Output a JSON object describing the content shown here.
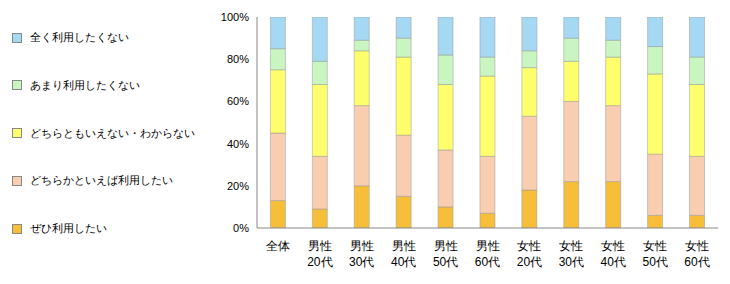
{
  "chart_data": {
    "type": "bar",
    "stacked": true,
    "categories": [
      "全体",
      "男性\n20代",
      "男性\n30代",
      "男性\n40代",
      "男性\n50代",
      "男性\n60代",
      "女性\n20代",
      "女性\n30代",
      "女性\n40代",
      "女性\n50代",
      "女性\n60代"
    ],
    "series": [
      {
        "name": "ぜひ利用したい",
        "color": "#F7BE3A",
        "values": [
          13,
          9,
          20,
          15,
          10,
          7,
          18,
          22,
          22,
          6,
          6
        ]
      },
      {
        "name": "どちらかといえば利用したい",
        "color": "#F9CDB0",
        "values": [
          32,
          25,
          38,
          29,
          27,
          27,
          35,
          38,
          36,
          29,
          28
        ]
      },
      {
        "name": "どちらともいえない・わからない",
        "color": "#FFFF6E",
        "values": [
          30,
          34,
          26,
          37,
          31,
          38,
          23,
          19,
          23,
          38,
          34
        ]
      },
      {
        "name": "あまり利用したくない",
        "color": "#C8F5C0",
        "values": [
          10,
          11,
          5,
          9,
          14,
          9,
          8,
          11,
          8,
          13,
          13
        ]
      },
      {
        "name": "全く利用したくない",
        "color": "#A5D8F3",
        "values": [
          15,
          21,
          11,
          10,
          18,
          19,
          16,
          10,
          11,
          14,
          19
        ]
      }
    ],
    "ylim": [
      0,
      100
    ],
    "yticks": [
      {
        "value": 0,
        "label": "0%"
      },
      {
        "value": 20,
        "label": "20%"
      },
      {
        "value": 40,
        "label": "40%"
      },
      {
        "value": 60,
        "label": "60%"
      },
      {
        "value": 80,
        "label": "80%"
      },
      {
        "value": 100,
        "label": "100%"
      }
    ],
    "legend": "left"
  }
}
